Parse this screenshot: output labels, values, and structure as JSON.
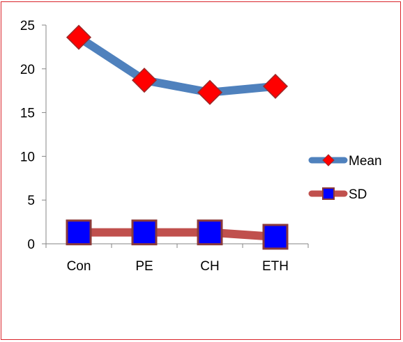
{
  "chart_data": {
    "type": "line",
    "categories": [
      "Con",
      "PE",
      "CH",
      "ETH"
    ],
    "series": [
      {
        "name": "Mean",
        "values": [
          23.6,
          18.7,
          17.3,
          18.0
        ],
        "line_color": "#4f81bd",
        "marker": "diamond",
        "marker_color": "#ff0000"
      },
      {
        "name": "SD",
        "values": [
          1.3,
          1.3,
          1.3,
          0.8
        ],
        "line_color": "#c0504d",
        "marker": "square",
        "marker_color": "#0000ff"
      }
    ],
    "ylim": [
      0,
      25
    ],
    "yticks": [
      0,
      5,
      10,
      15,
      20,
      25
    ],
    "legend_position": "right",
    "grid": false,
    "frame_color": "#d9242a"
  }
}
